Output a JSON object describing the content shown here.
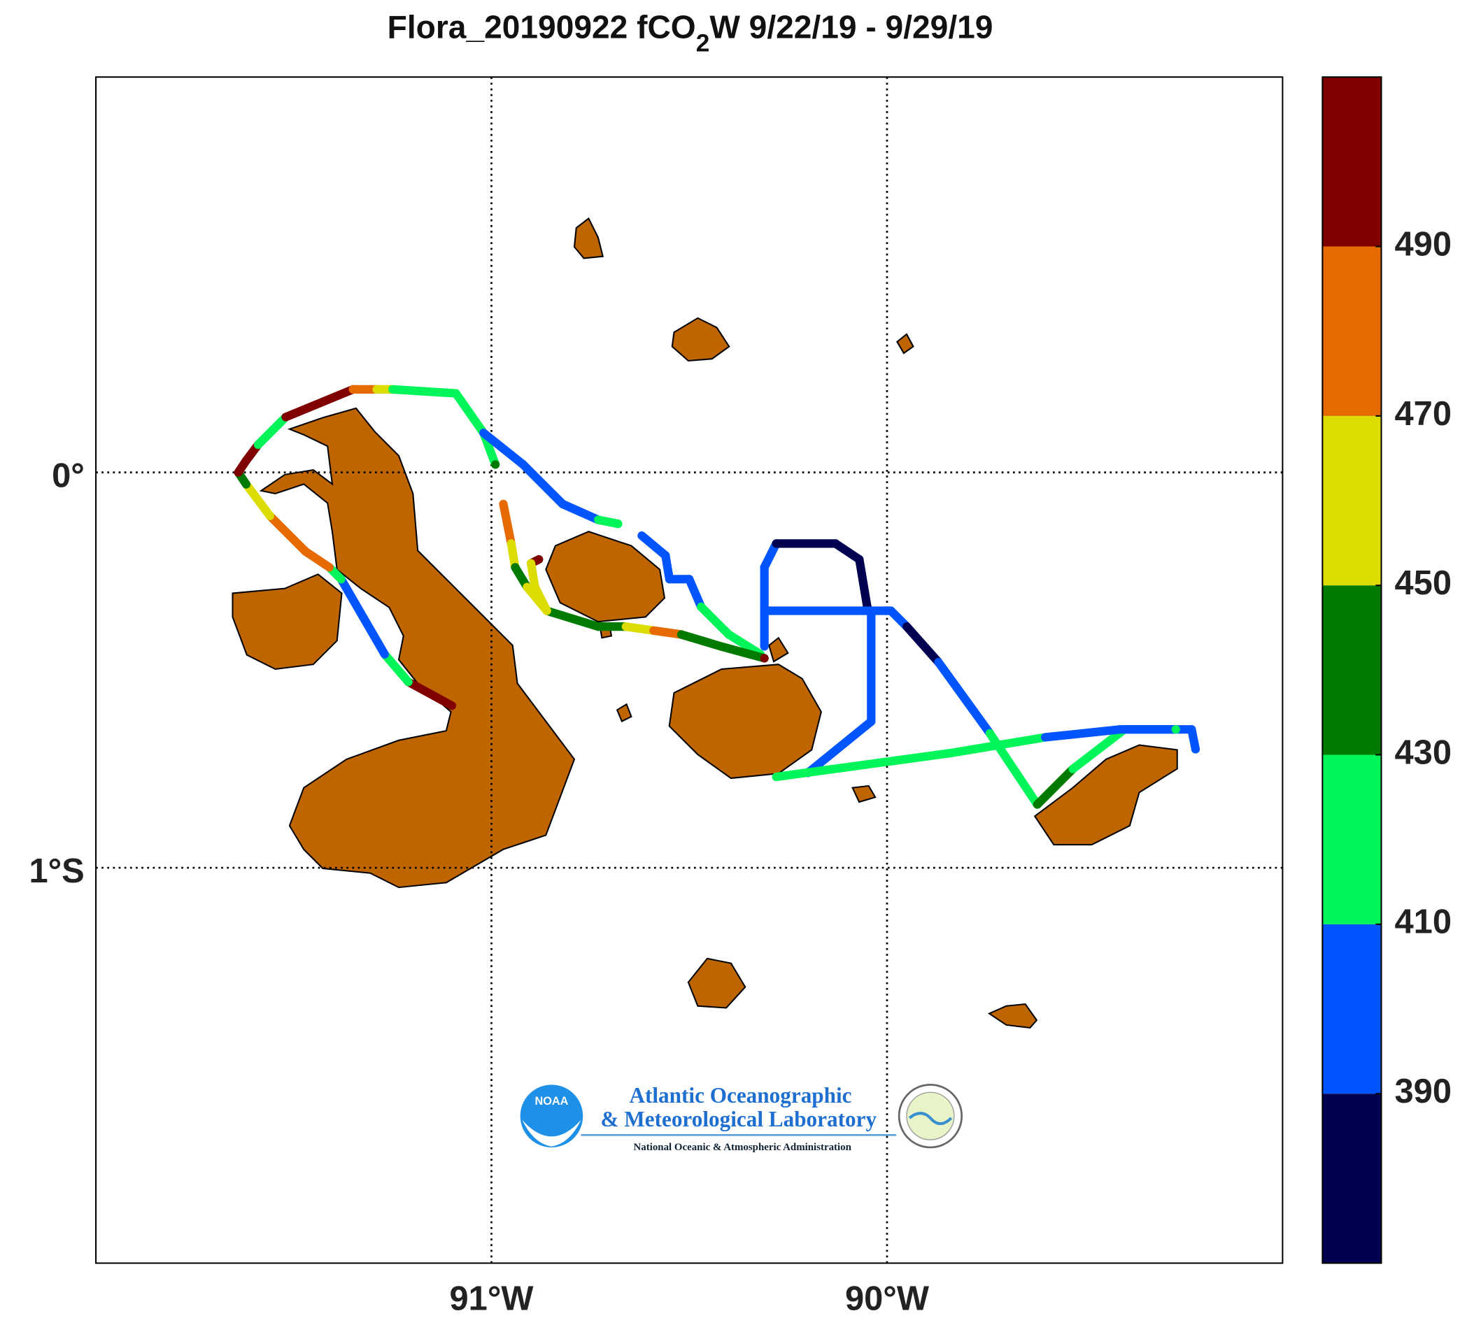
{
  "chart_data": {
    "type": "map",
    "title": {
      "before": "Flora_20190922 fCO",
      "subscript": "2",
      "after": "W 9/22/19 - 9/29/19"
    },
    "xlim": [
      -92,
      -89
    ],
    "ylim": [
      -2,
      1
    ],
    "xticks": [
      {
        "value": -91,
        "label": "91°W"
      },
      {
        "value": -90,
        "label": "90°W"
      }
    ],
    "yticks": [
      {
        "value": 0,
        "label": "0°"
      },
      {
        "value": -1,
        "label": "1°S"
      }
    ],
    "grid": true,
    "land_color": "#bf6500",
    "colorbar": {
      "clim": [
        370,
        510
      ],
      "ticks": [
        390,
        410,
        430,
        450,
        470,
        490
      ],
      "colors": [
        "#000050",
        "#0055ff",
        "#00f55a",
        "#007a00",
        "#dcdc00",
        "#e66a00",
        "#800000"
      ]
    },
    "tracks": [
      {
        "lon": [
          -91.1,
          -91.21,
          -91.27,
          -91.38,
          -91.41,
          -91.47,
          -91.56,
          -91.62,
          -91.64,
          -91.62,
          -91.59,
          -91.52,
          -91.35,
          -91.29,
          -91.25,
          -91.09,
          -91.02,
          -90.99
        ],
        "lat": [
          -0.59,
          -0.53,
          -0.46,
          -0.27,
          -0.24,
          -0.2,
          -0.11,
          -0.03,
          0.0,
          0.03,
          0.07,
          0.14,
          0.21,
          0.21,
          0.21,
          0.2,
          0.1,
          0.02
        ],
        "values": [
          500,
          420,
          400,
          420,
          480,
          470,
          460,
          440,
          500,
          500,
          420,
          500,
          480,
          460,
          420,
          420,
          420,
          440
        ]
      },
      {
        "lon": [
          -91.02,
          -90.92,
          -90.82,
          -90.73,
          -90.68
        ],
        "lat": [
          0.1,
          0.02,
          -0.08,
          -0.12,
          -0.13
        ],
        "values": [
          400,
          400,
          400,
          420,
          420
        ]
      },
      {
        "lon": [
          -90.62,
          -90.56,
          -90.55,
          -90.5,
          -90.47,
          -90.4,
          -90.32
        ],
        "lat": [
          -0.16,
          -0.21,
          -0.27,
          -0.27,
          -0.34,
          -0.41,
          -0.46
        ],
        "values": [
          400,
          400,
          400,
          400,
          420,
          420,
          420
        ]
      },
      {
        "lon": [
          -90.97,
          -90.95,
          -90.94,
          -90.91,
          -90.86,
          -90.73,
          -90.66,
          -90.59,
          -90.52,
          -90.42,
          -90.31
        ],
        "lat": [
          -0.08,
          -0.18,
          -0.24,
          -0.29,
          -0.35,
          -0.39,
          -0.39,
          -0.4,
          -0.41,
          -0.44,
          -0.47
        ],
        "values": [
          480,
          460,
          440,
          460,
          440,
          440,
          460,
          480,
          440,
          440,
          500
        ]
      },
      {
        "lon": [
          -90.88,
          -90.9,
          -90.89,
          -90.86
        ],
        "lat": [
          -0.22,
          -0.23,
          -0.29,
          -0.35
        ],
        "values": [
          500,
          460,
          460,
          460
        ]
      },
      {
        "lon": [
          -90.31,
          -90.31,
          -90.28,
          -90.13,
          -90.07,
          -90.05
        ],
        "lat": [
          -0.44,
          -0.24,
          -0.18,
          -0.18,
          -0.22,
          -0.34
        ],
        "values": [
          400,
          400,
          380,
          380,
          380,
          380
        ]
      },
      {
        "lon": [
          -90.31,
          -89.99,
          -89.95,
          -89.87,
          -89.74,
          -89.62,
          -89.53,
          -89.4,
          -89.23,
          -89.22
        ],
        "lat": [
          -0.35,
          -0.35,
          -0.39,
          -0.48,
          -0.66,
          -0.84,
          -0.75,
          -0.65,
          -0.65,
          -0.7
        ],
        "values": [
          400,
          400,
          380,
          400,
          420,
          440,
          420,
          400,
          400,
          400
        ]
      },
      {
        "lon": [
          -90.04,
          -90.04,
          -90.2
        ],
        "lat": [
          -0.36,
          -0.63,
          -0.76
        ],
        "values": [
          400,
          400,
          400
        ]
      },
      {
        "lon": [
          -90.28,
          -89.84,
          -89.6,
          -89.41,
          -89.27
        ],
        "lat": [
          -0.77,
          -0.71,
          -0.67,
          -0.65,
          -0.65
        ],
        "values": [
          420,
          420,
          400,
          400,
          420
        ]
      }
    ],
    "logo": {
      "agency": "NOAA",
      "lab_line1": "Atlantic Oceanographic",
      "lab_line2": "& Meteorological Laboratory",
      "subtitle": "National Oceanic & Atmospheric Administration"
    }
  }
}
